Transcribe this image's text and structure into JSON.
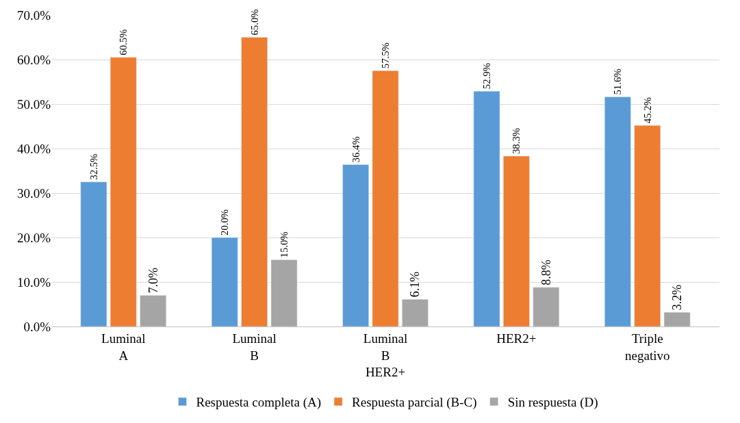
{
  "chart_data": {
    "type": "bar",
    "categories": [
      "Luminal A",
      "Luminal B",
      "Luminal B HER2+",
      "HER2+",
      "Triple negativo"
    ],
    "series": [
      {
        "name": "Respuesta completa (A)",
        "color": "#5b9bd5",
        "values": [
          32.5,
          20.0,
          36.4,
          52.9,
          51.6
        ],
        "value_labels": [
          "32.5%",
          "20.0%",
          "36.4%",
          "52.9%",
          "51.6%"
        ]
      },
      {
        "name": "Respuesta parcial (B-C)",
        "color": "#ed7d31",
        "values": [
          60.5,
          65.0,
          57.5,
          38.3,
          45.2
        ],
        "value_labels": [
          "60.5%",
          "65.0%",
          "57.5%",
          "38.3%",
          "45.2%"
        ]
      },
      {
        "name": "Sin respuesta (D)",
        "color": "#a5a5a5",
        "values": [
          7.0,
          15.0,
          6.1,
          8.8,
          3.2
        ],
        "value_labels": [
          "7.0%",
          "15.0%",
          "6.1%",
          "8.8%",
          "3.2%"
        ]
      }
    ],
    "ylim": [
      0,
      70
    ],
    "yticks": [
      {
        "value": 0,
        "label": "0.0%"
      },
      {
        "value": 10,
        "label": "10.0%"
      },
      {
        "value": 20,
        "label": "20.0%"
      },
      {
        "value": 30,
        "label": "30.0%"
      },
      {
        "value": 40,
        "label": "40.0%"
      },
      {
        "value": 50,
        "label": "50.0%"
      },
      {
        "value": 60,
        "label": "60.0%"
      },
      {
        "value": 70,
        "label": "70.0%"
      }
    ],
    "grid": "y",
    "legend": "bottom"
  }
}
